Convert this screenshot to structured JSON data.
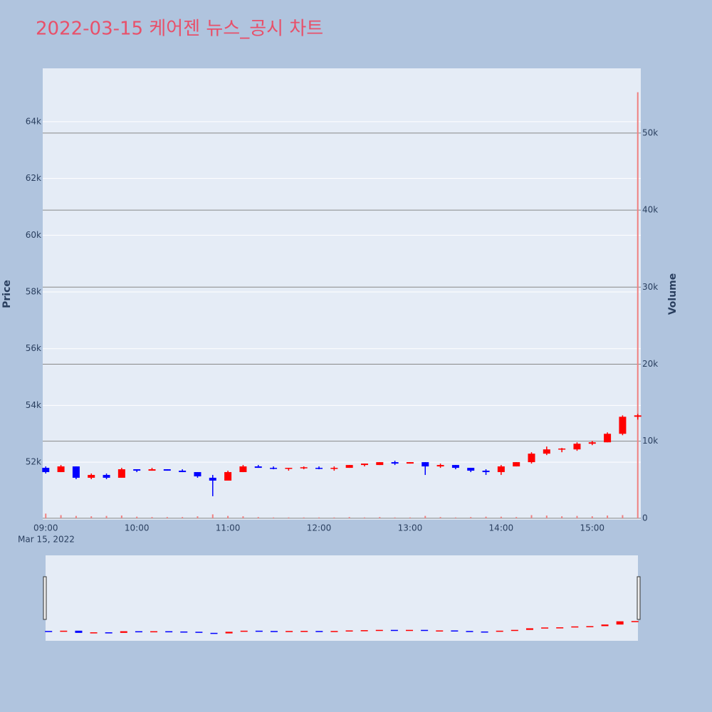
{
  "chart_data": {
    "type": "candlestick",
    "title": "2022-03-15 케어젠 뉴스_공시 차트",
    "y_title": "Price",
    "y2_title": "Volume",
    "x_date_label": "Mar 15, 2022",
    "increasing_color": "#ff0000",
    "decreasing_color": "#0000ff",
    "volume_color": "#f08080",
    "x": [
      "09:00",
      "09:10",
      "09:20",
      "09:30",
      "09:40",
      "09:50",
      "10:00",
      "10:10",
      "10:20",
      "10:30",
      "10:40",
      "10:50",
      "11:00",
      "11:10",
      "11:20",
      "11:30",
      "11:40",
      "11:50",
      "12:00",
      "12:10",
      "12:20",
      "12:30",
      "12:40",
      "12:50",
      "13:00",
      "13:10",
      "13:20",
      "13:30",
      "13:40",
      "13:50",
      "14:00",
      "14:10",
      "14:20",
      "14:30",
      "14:40",
      "14:50",
      "15:00",
      "15:10",
      "15:20",
      "15:30"
    ],
    "open": [
      51800,
      51650,
      51850,
      51450,
      51550,
      51450,
      51750,
      51700,
      51750,
      51700,
      51650,
      51450,
      51350,
      51650,
      51850,
      51800,
      51780,
      51800,
      51800,
      51780,
      51800,
      51900,
      51900,
      52000,
      51950,
      52000,
      51850,
      51900,
      51800,
      51700,
      51650,
      51850,
      52000,
      52300,
      52450,
      52450,
      52650,
      52700,
      53000,
      53600
    ],
    "high": [
      51850,
      51900,
      51850,
      51600,
      51600,
      51800,
      51750,
      51800,
      51750,
      51750,
      51650,
      51550,
      51700,
      51900,
      51900,
      51850,
      51800,
      51850,
      51850,
      51850,
      51900,
      51950,
      52000,
      52050,
      52000,
      52000,
      51950,
      51900,
      51800,
      51750,
      51900,
      52000,
      52350,
      52550,
      52500,
      52700,
      52750,
      53050,
      53650,
      53700
    ],
    "low": [
      51600,
      51650,
      51400,
      51400,
      51400,
      51450,
      51650,
      51700,
      51700,
      51650,
      51450,
      50800,
      51350,
      51650,
      51800,
      51750,
      51700,
      51750,
      51750,
      51700,
      51800,
      51850,
      51900,
      51900,
      51950,
      51550,
      51800,
      51750,
      51650,
      51550,
      51550,
      51850,
      51950,
      52250,
      52350,
      52400,
      52600,
      52700,
      52950,
      53500
    ],
    "close": [
      51650,
      51850,
      51450,
      51550,
      51450,
      51750,
      51700,
      51750,
      51700,
      51650,
      51500,
      51350,
      51650,
      51850,
      51800,
      51780,
      51800,
      51820,
      51780,
      51800,
      51900,
      51950,
      52000,
      51950,
      52000,
      51850,
      51900,
      51800,
      51700,
      51650,
      51850,
      52000,
      52300,
      52450,
      52480,
      52650,
      52700,
      53000,
      53600,
      53650
    ],
    "volume": [
      600,
      400,
      300,
      250,
      300,
      350,
      200,
      150,
      150,
      150,
      250,
      500,
      300,
      250,
      150,
      100,
      100,
      100,
      100,
      100,
      150,
      100,
      150,
      100,
      100,
      300,
      150,
      100,
      150,
      200,
      200,
      150,
      400,
      350,
      250,
      300,
      250,
      350,
      400,
      55300
    ],
    "xlim": [
      "08:58",
      "15:32"
    ],
    "xticks": [
      "09:00",
      "10:00",
      "11:00",
      "12:00",
      "13:00",
      "14:00",
      "15:00"
    ],
    "ylim": [
      49970,
      65880
    ],
    "yticks": [
      {
        "value": 52000,
        "label": "52k"
      },
      {
        "value": 54000,
        "label": "54k"
      },
      {
        "value": 56000,
        "label": "56k"
      },
      {
        "value": 58000,
        "label": "58k"
      },
      {
        "value": 60000,
        "label": "60k"
      },
      {
        "value": 62000,
        "label": "62k"
      },
      {
        "value": 64000,
        "label": "64k"
      }
    ],
    "y2lim": [
      -200,
      58400
    ],
    "y2ticks": [
      0,
      {
        "value": 10000,
        "label": "10k"
      },
      {
        "value": 20000,
        "label": "20k"
      },
      {
        "value": 30000,
        "label": "30k"
      },
      {
        "value": 40000,
        "label": "40k"
      },
      {
        "value": 50000,
        "label": "50k"
      }
    ],
    "grid": true,
    "rangeslider": true
  }
}
